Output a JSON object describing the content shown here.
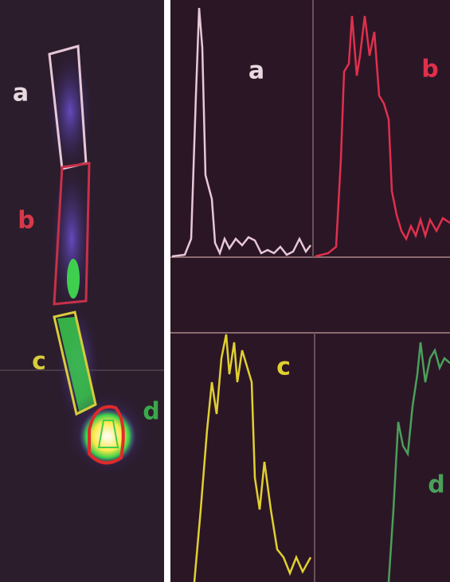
{
  "left_panel": {
    "labels": [
      "a",
      "b",
      "c",
      "d"
    ]
  },
  "right_panel": {
    "labels": [
      "a",
      "b",
      "c",
      "d"
    ]
  }
}
